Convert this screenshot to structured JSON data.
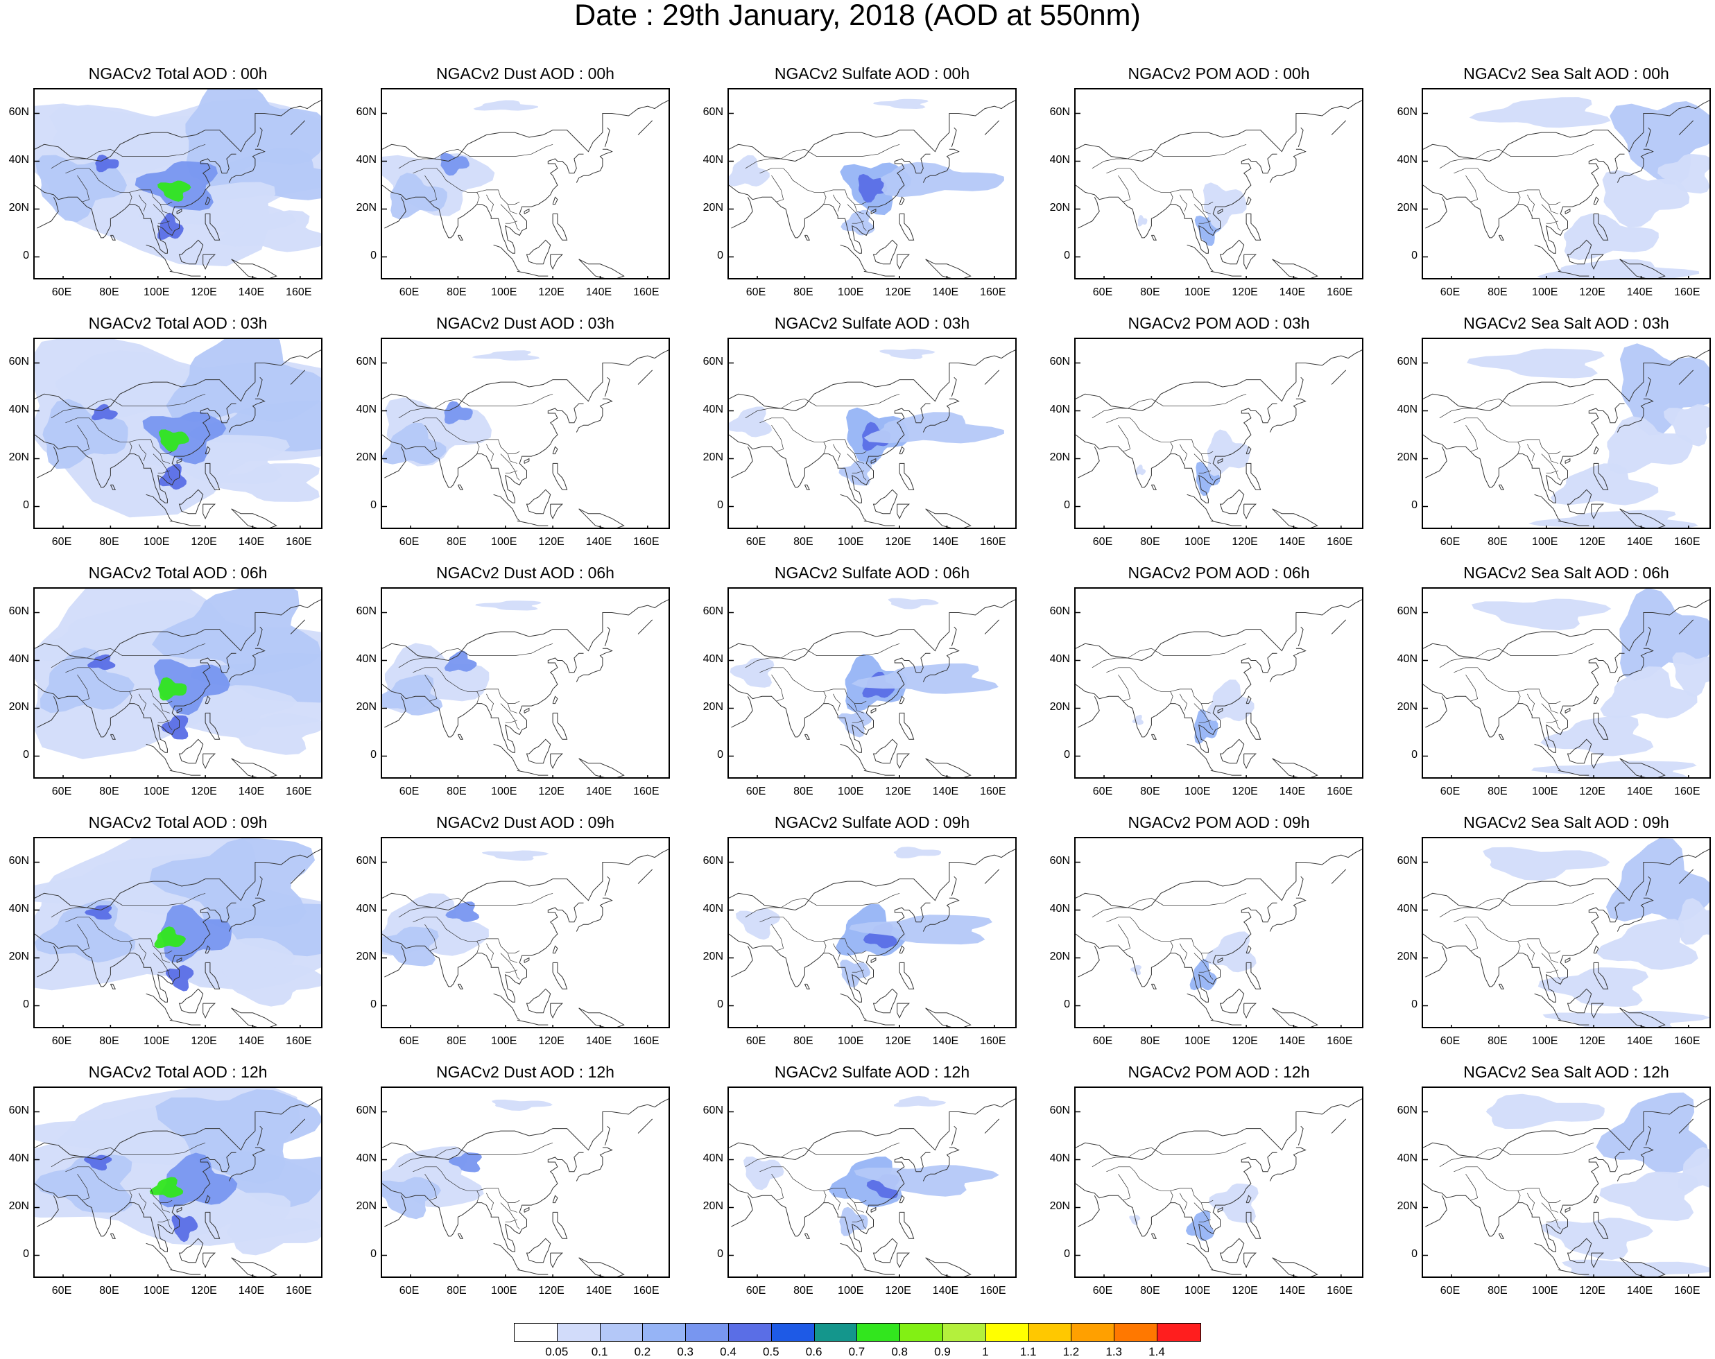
{
  "title": "Date : 29th January, 2018 (AOD at 550nm)",
  "lat_labels": [
    "60N",
    "40N",
    "20N",
    "0"
  ],
  "lon_labels": [
    "60E",
    "80E",
    "100E",
    "120E",
    "140E",
    "160E"
  ],
  "rows": [
    {
      "hour": "00h",
      "panels": [
        {
          "title": "NGACv2 Total AOD : 00h",
          "species": "total"
        },
        {
          "title": "NGACv2 Dust AOD : 00h",
          "species": "dust"
        },
        {
          "title": "NGACv2 Sulfate AOD : 00h",
          "species": "sulfate"
        },
        {
          "title": "NGACv2 POM AOD : 00h",
          "species": "pom"
        },
        {
          "title": "NGACv2 Sea Salt AOD : 00h",
          "species": "seasalt"
        }
      ]
    },
    {
      "hour": "03h",
      "panels": [
        {
          "title": "NGACv2 Total AOD : 03h",
          "species": "total"
        },
        {
          "title": "NGACv2 Dust AOD : 03h",
          "species": "dust"
        },
        {
          "title": "NGACv2 Sulfate AOD : 03h",
          "species": "sulfate"
        },
        {
          "title": "NGACv2 POM AOD : 03h",
          "species": "pom"
        },
        {
          "title": "NGACv2 Sea Salt AOD : 03h",
          "species": "seasalt"
        }
      ]
    },
    {
      "hour": "06h",
      "panels": [
        {
          "title": "NGACv2 Total AOD : 06h",
          "species": "total"
        },
        {
          "title": "NGACv2 Dust AOD : 06h",
          "species": "dust"
        },
        {
          "title": "NGACv2 Sulfate AOD : 06h",
          "species": "sulfate"
        },
        {
          "title": "NGACv2 POM AOD : 06h",
          "species": "pom"
        },
        {
          "title": "NGACv2 Sea Salt AOD : 06h",
          "species": "seasalt"
        }
      ]
    },
    {
      "hour": "09h",
      "panels": [
        {
          "title": "NGACv2 Total AOD : 09h",
          "species": "total"
        },
        {
          "title": "NGACv2 Dust AOD : 09h",
          "species": "dust"
        },
        {
          "title": "NGACv2 Sulfate AOD : 09h",
          "species": "sulfate"
        },
        {
          "title": "NGACv2 POM AOD : 09h",
          "species": "pom"
        },
        {
          "title": "NGACv2 Sea Salt  AOD : 09h",
          "species": "seasalt"
        }
      ]
    },
    {
      "hour": "12h",
      "panels": [
        {
          "title": "NGACv2 Total AOD  : 12h",
          "species": "total"
        },
        {
          "title": "NGACv2 Dust AOD : 12h",
          "species": "dust"
        },
        {
          "title": "NGACv2 Sulfate AOD : 12h",
          "species": "sulfate"
        },
        {
          "title": "NGACv2 POM  AOD : 12h",
          "species": "pom"
        },
        {
          "title": "NGACv2 Sea Salt  AOD : 12h",
          "species": "seasalt"
        }
      ]
    }
  ],
  "colorbar": {
    "colors": [
      "#ffffff",
      "#d2dcfa",
      "#b4c8f8",
      "#96b4f6",
      "#7896f0",
      "#5a6ee6",
      "#1e5ae6",
      "#14968c",
      "#32e61e",
      "#82f014",
      "#b4f03c",
      "#ffff00",
      "#ffc800",
      "#ffa000",
      "#ff7800",
      "#ff1e1e"
    ],
    "labels": [
      "0.05",
      "0.1",
      "0.2",
      "0.3",
      "0.4",
      "0.5",
      "0.6",
      "0.7",
      "0.8",
      "0.9",
      "1",
      "1.1",
      "1.2",
      "1.3",
      "1.4"
    ]
  }
}
